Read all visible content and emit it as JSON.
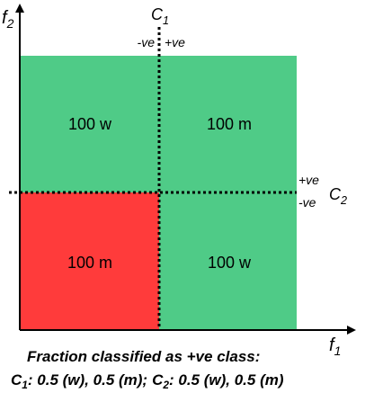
{
  "axes": {
    "x": {
      "label": "f",
      "subscript": "1"
    },
    "y": {
      "label": "f",
      "subscript": "2"
    }
  },
  "classifiers": [
    {
      "label": "C",
      "subscript": "1",
      "negative": "-ve",
      "positive": "+ve"
    },
    {
      "label": "C",
      "subscript": "2",
      "negative": "-ve",
      "positive": "+ve"
    }
  ],
  "quadrants": [
    {
      "label": "100 w"
    },
    {
      "label": "100 m"
    },
    {
      "label": "100 m"
    },
    {
      "label": "100 w"
    }
  ],
  "caption": {
    "line1": "Fraction classified as +ve class:",
    "line2": [
      {
        "label": "C",
        "subscript": "1",
        "text": ": 0.5 (w), 0.5 (m);"
      },
      {
        "label": "C",
        "subscript": "2",
        "text": ": 0.5 (w), 0.5 (m)"
      }
    ]
  }
}
